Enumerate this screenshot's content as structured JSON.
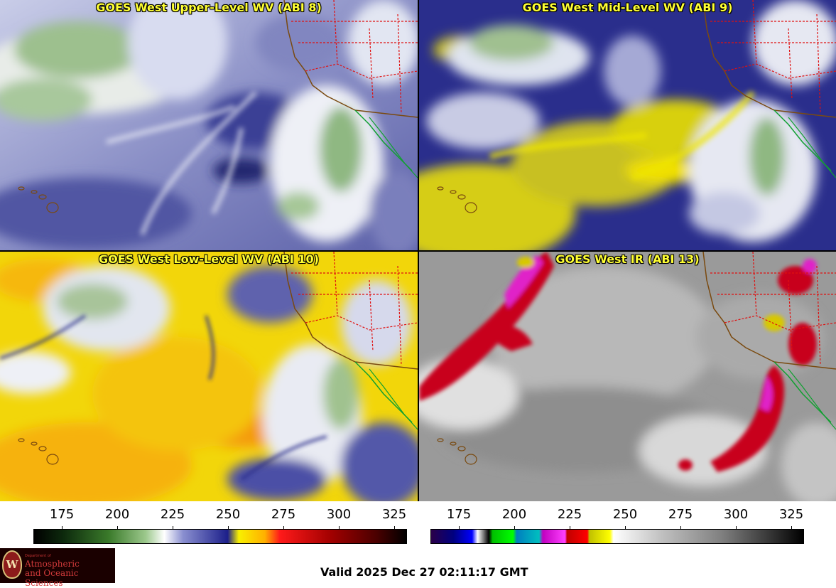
{
  "panels": [
    {
      "id": "upper",
      "title": "GOES West Upper-Level WV (ABI 8)"
    },
    {
      "id": "mid",
      "title": "GOES West Mid-Level WV (ABI 9)"
    },
    {
      "id": "low",
      "title": "GOES West Low-Level WV (ABI 10)"
    },
    {
      "id": "ir",
      "title": "GOES West IR (ABI 13)"
    }
  ],
  "colorbars": {
    "wv": {
      "ticks": [
        "175",
        "200",
        "225",
        "250",
        "275",
        "300",
        "325"
      ]
    },
    "ir": {
      "ticks": [
        "175",
        "200",
        "225",
        "250",
        "275",
        "300",
        "325"
      ]
    }
  },
  "logo": {
    "seal_letter": "W",
    "small_text": "Department of",
    "line1": "Atmospheric",
    "line2": "and Oceanic Sciences"
  },
  "valid_time": "Valid 2025 Dec 27 02:11:17 GMT",
  "colors": {
    "title_text": "#ffff33",
    "wv_dry": "#f0e000",
    "wv_moist": "#1c1f8a",
    "ir_cold": "#c8001e",
    "state_borders": "#e01010",
    "coastline_us": "#7a4a10",
    "coastline_mx": "#10a030"
  }
}
